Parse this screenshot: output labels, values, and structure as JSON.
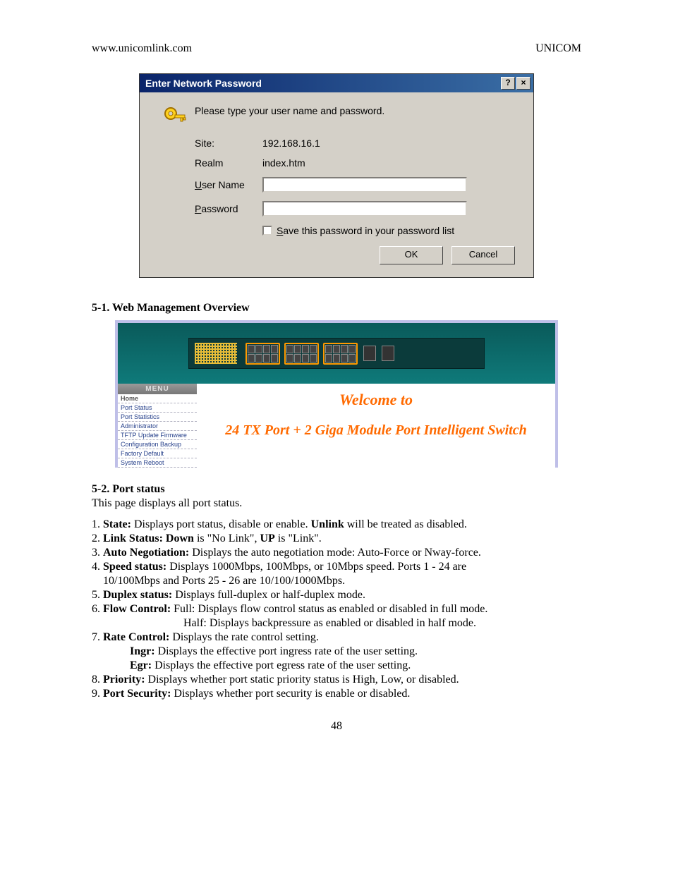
{
  "header": {
    "left": "www.unicomlink.com",
    "right": "UNICOM"
  },
  "dialog": {
    "title": "Enter Network Password",
    "instruction": "Please type your user name and password.",
    "rows": {
      "site_label": "Site:",
      "site_value": "192.168.16.1",
      "realm_label": "Realm",
      "realm_value": "index.htm",
      "user_label": "User Name",
      "pass_label": "Password"
    },
    "save_label": "Save this password in your password list",
    "ok": "OK",
    "cancel": "Cancel",
    "help_btn": "?",
    "close_btn": "×"
  },
  "section_51": "5-1. Web Management Overview",
  "webshot": {
    "menu_header": "MENU",
    "menu_items": [
      "Home",
      "Port Status",
      "Port Statistics",
      "Administrator",
      "TFTP Update Firmware",
      "Configuration Backup",
      "Factory Default",
      "System Reboot"
    ],
    "welcome": "Welcome to",
    "product": "24 TX Port + 2 Giga Module Port Intelligent Switch"
  },
  "section_52_title": "5-2. Port status",
  "section_52_intro": "This page displays all port status.",
  "items": [
    {
      "n": "1.",
      "b": "State:",
      "t": " Displays port status, disable or enable. ",
      "b2": "Unlink",
      "t2": " will be treated as disabled."
    },
    {
      "n": "2.",
      "b": "Link Status: Down",
      "t": " is \"No Link\", ",
      "b2": "UP",
      "t2": " is \"Link\"."
    },
    {
      "n": "3.",
      "b": "Auto Negotiation:",
      "t": " Displays the auto negotiation mode: Auto-Force or Nway-force."
    },
    {
      "n": "4.",
      "b": "Speed status:",
      "t": " Displays 1000Mbps, 100Mbps, or 10Mbps speed. Ports 1 - 24 are"
    },
    {
      "cont": "10/100Mbps and Ports 25 - 26 are 10/100/1000Mbps."
    },
    {
      "n": "5.",
      "b": "Duplex status:",
      "t": " Displays full-duplex or half-duplex mode."
    },
    {
      "n": "6.",
      "b": "Flow Control:",
      "t": " Full: Displays flow control status as enabled or disabled in full mode."
    },
    {
      "cont2": "Half:  Displays backpressure as enabled or disabled in half mode."
    },
    {
      "n": "7.",
      "b": "Rate Control:",
      "t": " Displays the rate control setting."
    },
    {
      "cont3b": "Ingr:",
      "cont3t": "  Displays the effective port ingress rate of the user setting."
    },
    {
      "cont3b": "Egr:",
      "cont3t": "  Displays the effective port egress rate of the user setting."
    },
    {
      "n": "8. ",
      "b": "Priority:",
      "t": " Displays whether port static priority status is High, Low, or disabled."
    },
    {
      "n": "9. ",
      "b": "Port Security:",
      "t": " Displays whether port security is enable or disabled."
    }
  ],
  "pagenum": "48"
}
